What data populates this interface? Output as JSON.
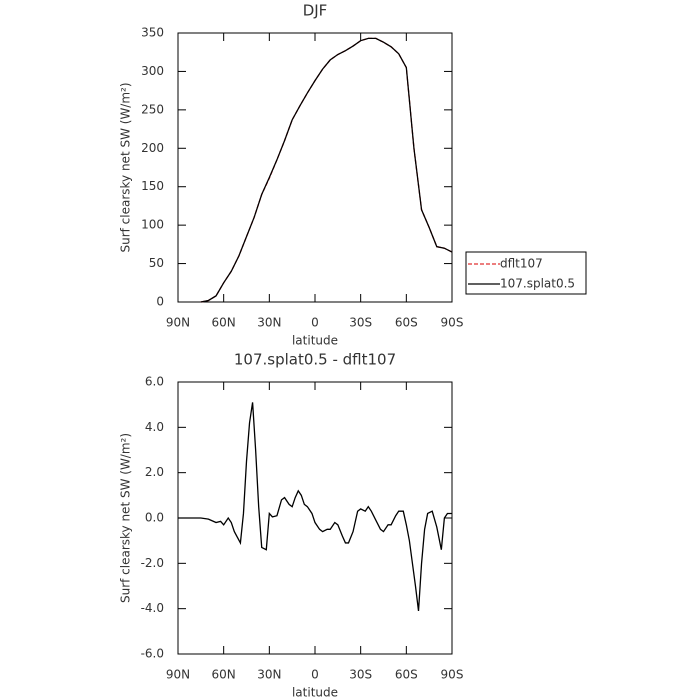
{
  "chart_data": [
    {
      "type": "line",
      "title": "DJF",
      "xlabel": "latitude",
      "ylabel": "Surf clearsky net SW (W/m²)",
      "x": [
        90,
        85,
        80,
        75,
        70,
        65,
        60,
        55,
        50,
        45,
        40,
        35,
        30,
        25,
        20,
        15,
        10,
        5,
        0,
        -5,
        -10,
        -15,
        -20,
        -25,
        -30,
        -35,
        -40,
        -45,
        -50,
        -55,
        -60,
        -65,
        -70,
        -75,
        -80,
        -85,
        -90
      ],
      "series": [
        {
          "name": "dflt107",
          "color": "#e03030",
          "dash": true,
          "values": [
            null,
            null,
            null,
            0,
            2,
            8,
            25,
            40,
            60,
            85,
            110,
            140,
            161,
            185,
            210,
            237,
            255,
            272,
            288,
            303,
            315,
            322,
            327,
            333,
            340,
            343,
            343,
            338,
            332,
            323,
            305,
            200,
            120,
            97,
            72,
            70,
            65
          ]
        },
        {
          "name": "107.splat0.5",
          "color": "#000000",
          "dash": false,
          "values": [
            null,
            null,
            null,
            0,
            2,
            8,
            25,
            40,
            60,
            85,
            110,
            140,
            162,
            185,
            210,
            237,
            255,
            272,
            288,
            303,
            315,
            322,
            327,
            333,
            340,
            343,
            343,
            338,
            332,
            323,
            305,
            200,
            120,
            97,
            72,
            70,
            65
          ]
        }
      ],
      "xlim": [
        90,
        -90
      ],
      "xticks": [
        {
          "value": 90,
          "label": "90N"
        },
        {
          "value": 60,
          "label": "60N"
        },
        {
          "value": 30,
          "label": "30N"
        },
        0,
        {
          "value": -30,
          "label": "30S"
        },
        {
          "value": -60,
          "label": "60S"
        },
        {
          "value": -90,
          "label": "90S"
        }
      ],
      "ylim": [
        0,
        350
      ],
      "yticks": [
        0,
        50,
        100,
        150,
        200,
        250,
        300,
        350
      ],
      "legend": "right"
    },
    {
      "type": "line",
      "title": "107.splat0.5 - dflt107",
      "xlabel": "latitude",
      "ylabel": "Surf clearsky net SW (W/m²)",
      "x": [
        90,
        80,
        75,
        70,
        65,
        62,
        60,
        57,
        55,
        53,
        49,
        47,
        45,
        43,
        41,
        39,
        37,
        35,
        32,
        30,
        28,
        25,
        22,
        20,
        17,
        15,
        13,
        11,
        9,
        7,
        5,
        2,
        0,
        -3,
        -5,
        -8,
        -10,
        -13,
        -15,
        -18,
        -20,
        -22,
        -25,
        -28,
        -30,
        -33,
        -35,
        -37,
        -40,
        -43,
        -45,
        -48,
        -50,
        -53,
        -55,
        -58,
        -60,
        -62,
        -64,
        -66,
        -68,
        -70,
        -72,
        -74,
        -77,
        -80,
        -83,
        -85,
        -87,
        -90
      ],
      "series": [
        {
          "color": "#000000",
          "dash": false,
          "values": [
            0,
            0,
            0,
            -0.05,
            -0.2,
            -0.15,
            -0.3,
            0,
            -0.2,
            -0.6,
            -1.1,
            0.2,
            2.5,
            4.2,
            5.1,
            3.0,
            0.5,
            -1.3,
            -1.4,
            0.2,
            0.05,
            0.1,
            0.8,
            0.9,
            0.6,
            0.5,
            0.9,
            1.2,
            1.0,
            0.6,
            0.5,
            0.2,
            -0.2,
            -0.5,
            -0.6,
            -0.5,
            -0.5,
            -0.2,
            -0.3,
            -0.8,
            -1.1,
            -1.1,
            -0.6,
            0.3,
            0.4,
            0.3,
            0.5,
            0.3,
            -0.1,
            -0.5,
            -0.6,
            -0.3,
            -0.3,
            0.1,
            0.3,
            0.3,
            -0.3,
            -1.0,
            -2.0,
            -3.0,
            -4.1,
            -2.0,
            -0.5,
            0.2,
            0.3,
            -0.4,
            -1.4,
            0,
            0.2,
            0.2
          ]
        }
      ],
      "xlim": [
        90,
        -90
      ],
      "xticks": [
        {
          "value": 90,
          "label": "90N"
        },
        {
          "value": 60,
          "label": "60N"
        },
        {
          "value": 30,
          "label": "30N"
        },
        0,
        {
          "value": -30,
          "label": "30S"
        },
        {
          "value": -60,
          "label": "60S"
        },
        {
          "value": -90,
          "label": "90S"
        }
      ],
      "ylim": [
        -6,
        6
      ],
      "yticks": [
        {
          "value": -6,
          "label": "-6.0"
        },
        {
          "value": -4,
          "label": "-4.0"
        },
        {
          "value": -2,
          "label": "-2.0"
        },
        {
          "value": 0,
          "label": "0.0"
        },
        {
          "value": 2,
          "label": "2.0"
        },
        {
          "value": 4,
          "label": "4.0"
        },
        {
          "value": 6,
          "label": "6.0"
        }
      ]
    }
  ]
}
